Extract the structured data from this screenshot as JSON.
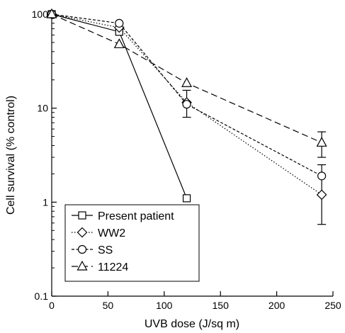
{
  "chart_data": {
    "type": "line",
    "title": "",
    "xlabel": "UVB dose (J/sq m)",
    "ylabel": "Cell survival (% control)",
    "xlim": [
      0,
      250
    ],
    "ylim": [
      0.1,
      100
    ],
    "yscale": "log",
    "xticks": [
      0,
      50,
      100,
      150,
      200,
      250
    ],
    "yticks": [
      0.1,
      1,
      10,
      100
    ],
    "ytick_labels": [
      "0.1",
      "1",
      "10",
      "100"
    ],
    "grid": false,
    "legend_position": "bottom-left",
    "series": [
      {
        "name": "Present patient",
        "marker": "square",
        "line_style": "solid",
        "x": [
          0,
          60,
          120
        ],
        "y": [
          100,
          65,
          1.1
        ],
        "error_low": [
          null,
          null,
          null
        ],
        "error_high": [
          null,
          null,
          null
        ]
      },
      {
        "name": "WW2",
        "marker": "diamond",
        "line_style": "dotted",
        "x": [
          0,
          60,
          120,
          240
        ],
        "y": [
          100,
          72,
          11.5,
          1.2
        ],
        "error_low": [
          null,
          null,
          8,
          0.58
        ],
        "error_high": [
          null,
          null,
          15.5,
          2.5
        ]
      },
      {
        "name": "SS",
        "marker": "circle",
        "line_style": "short-dash",
        "x": [
          0,
          60,
          120,
          240
        ],
        "y": [
          100,
          80,
          11,
          1.9
        ],
        "error_low": [
          null,
          null,
          null,
          null
        ],
        "error_high": [
          null,
          null,
          null,
          null
        ]
      },
      {
        "name": "11224",
        "marker": "triangle",
        "line_style": "long-dash",
        "x": [
          0,
          60,
          120,
          240
        ],
        "y": [
          100,
          48,
          18.5,
          4.3
        ],
        "error_low": [
          null,
          null,
          null,
          3
        ],
        "error_high": [
          null,
          null,
          null,
          5.6
        ]
      }
    ]
  }
}
